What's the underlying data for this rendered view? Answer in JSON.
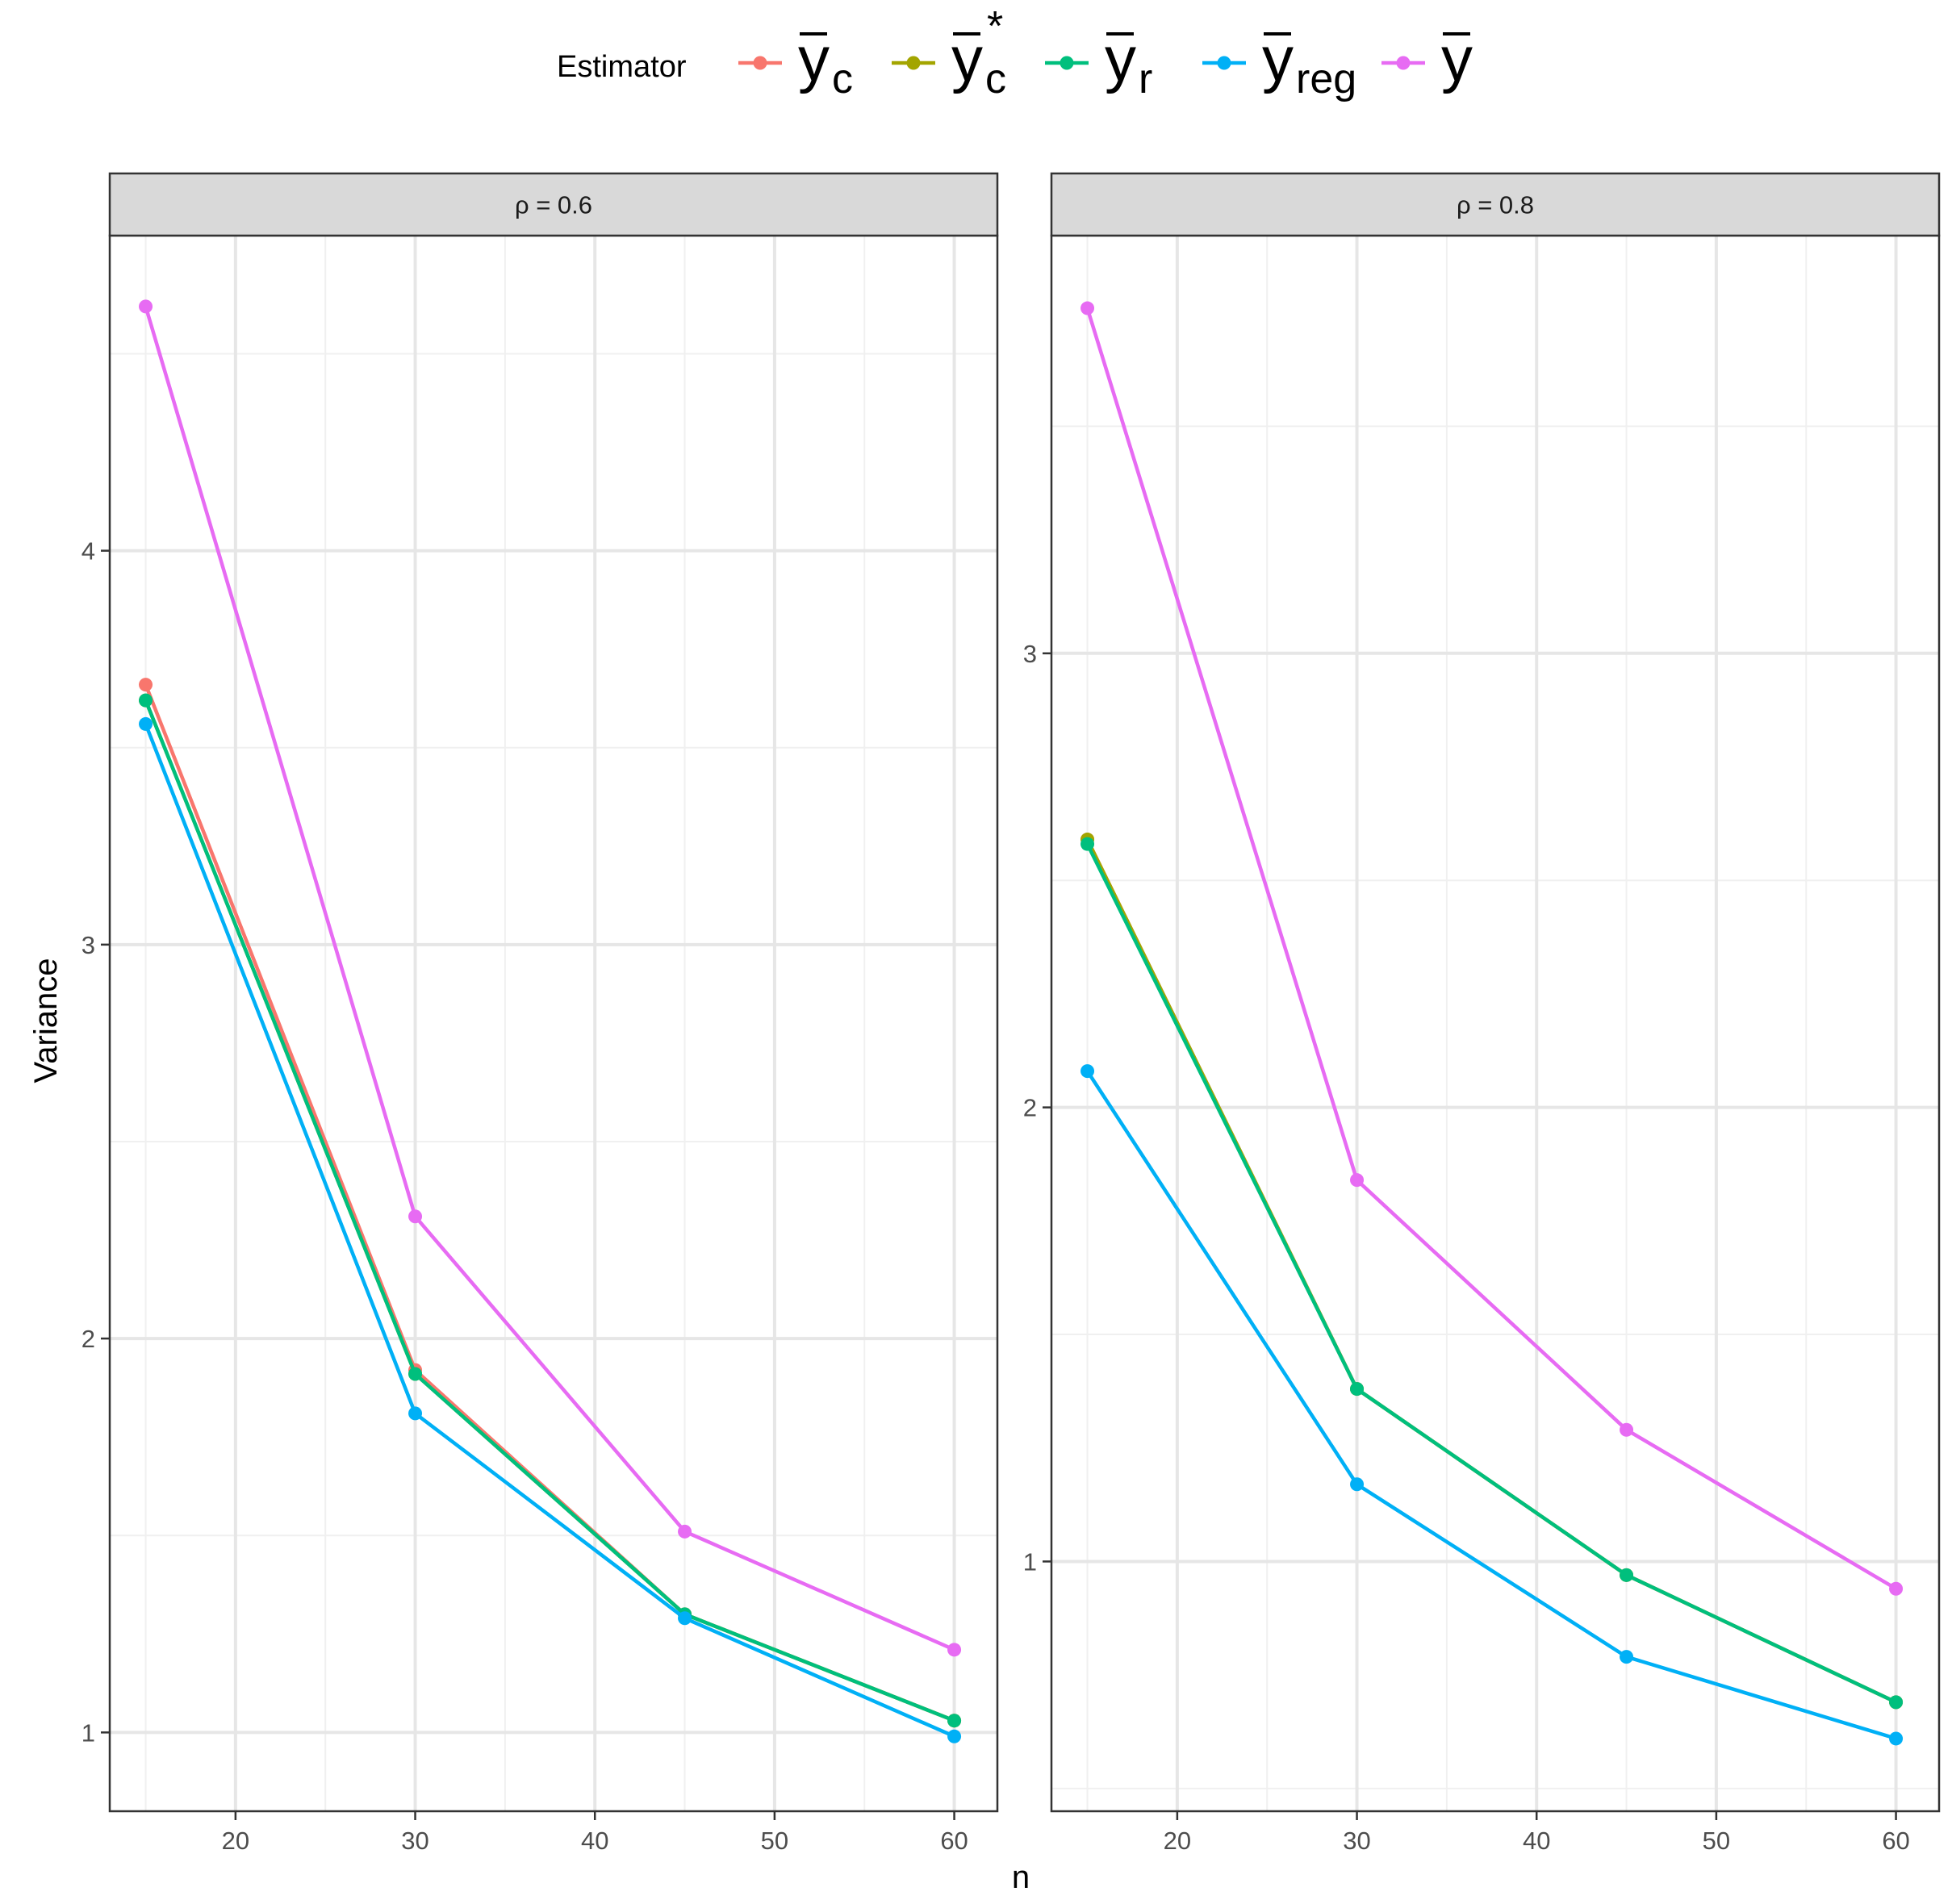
{
  "chart_data": {
    "type": "line",
    "xlabel": "n",
    "ylabel": "Variance",
    "legend": {
      "title": "Estimator",
      "position": "top",
      "entries": [
        {
          "symbol": "y",
          "sub": "c",
          "sup": "",
          "color": "#F8766D"
        },
        {
          "symbol": "y",
          "sub": "c",
          "sup": "*",
          "color": "#A3A500"
        },
        {
          "symbol": "y",
          "sub": "r",
          "sup": "",
          "color": "#00BF7D"
        },
        {
          "symbol": "y",
          "sub": "reg",
          "sup": "",
          "color": "#00B0F6"
        },
        {
          "symbol": "y",
          "sub": "",
          "sup": "",
          "color": "#E76BF3"
        }
      ]
    },
    "x_ticks": [
      "20",
      "30",
      "40",
      "50",
      "60"
    ],
    "grid": true,
    "panels": [
      {
        "strip": "ρ = 0.6",
        "x": [
          15,
          30,
          45,
          60
        ],
        "xlim": [
          13,
          62.4
        ],
        "ylim": [
          0.8,
          4.8
        ],
        "y_ticks": [
          "1",
          "2",
          "3",
          "4"
        ],
        "series": [
          {
            "values": [
              3.66,
              1.92,
              1.3,
              1.03
            ],
            "color": "#F8766D"
          },
          {
            "values": [
              3.62,
              1.91,
              1.3,
              1.03
            ],
            "color": "#A3A500"
          },
          {
            "values": [
              3.62,
              1.91,
              1.3,
              1.03
            ],
            "color": "#00BF7D"
          },
          {
            "values": [
              3.56,
              1.81,
              1.29,
              0.99
            ],
            "color": "#00B0F6"
          },
          {
            "values": [
              4.62,
              2.31,
              1.51,
              1.21
            ],
            "color": "#E76BF3"
          }
        ]
      },
      {
        "strip": "ρ = 0.8",
        "x": [
          15,
          30,
          45,
          60
        ],
        "xlim": [
          13,
          62.4
        ],
        "ylim": [
          0.45,
          3.92
        ],
        "y_ticks": [
          "1",
          "2",
          "3"
        ],
        "series": [
          {
            "values": [
              2.59,
              1.38,
              0.97,
              0.69
            ],
            "color": "#F8766D"
          },
          {
            "values": [
              2.59,
              1.38,
              0.97,
              0.69
            ],
            "color": "#A3A500"
          },
          {
            "values": [
              2.58,
              1.38,
              0.97,
              0.69
            ],
            "color": "#00BF7D"
          },
          {
            "values": [
              2.08,
              1.17,
              0.79,
              0.61
            ],
            "color": "#00B0F6"
          },
          {
            "values": [
              3.76,
              1.84,
              1.29,
              0.94
            ],
            "color": "#E76BF3"
          }
        ]
      }
    ]
  }
}
